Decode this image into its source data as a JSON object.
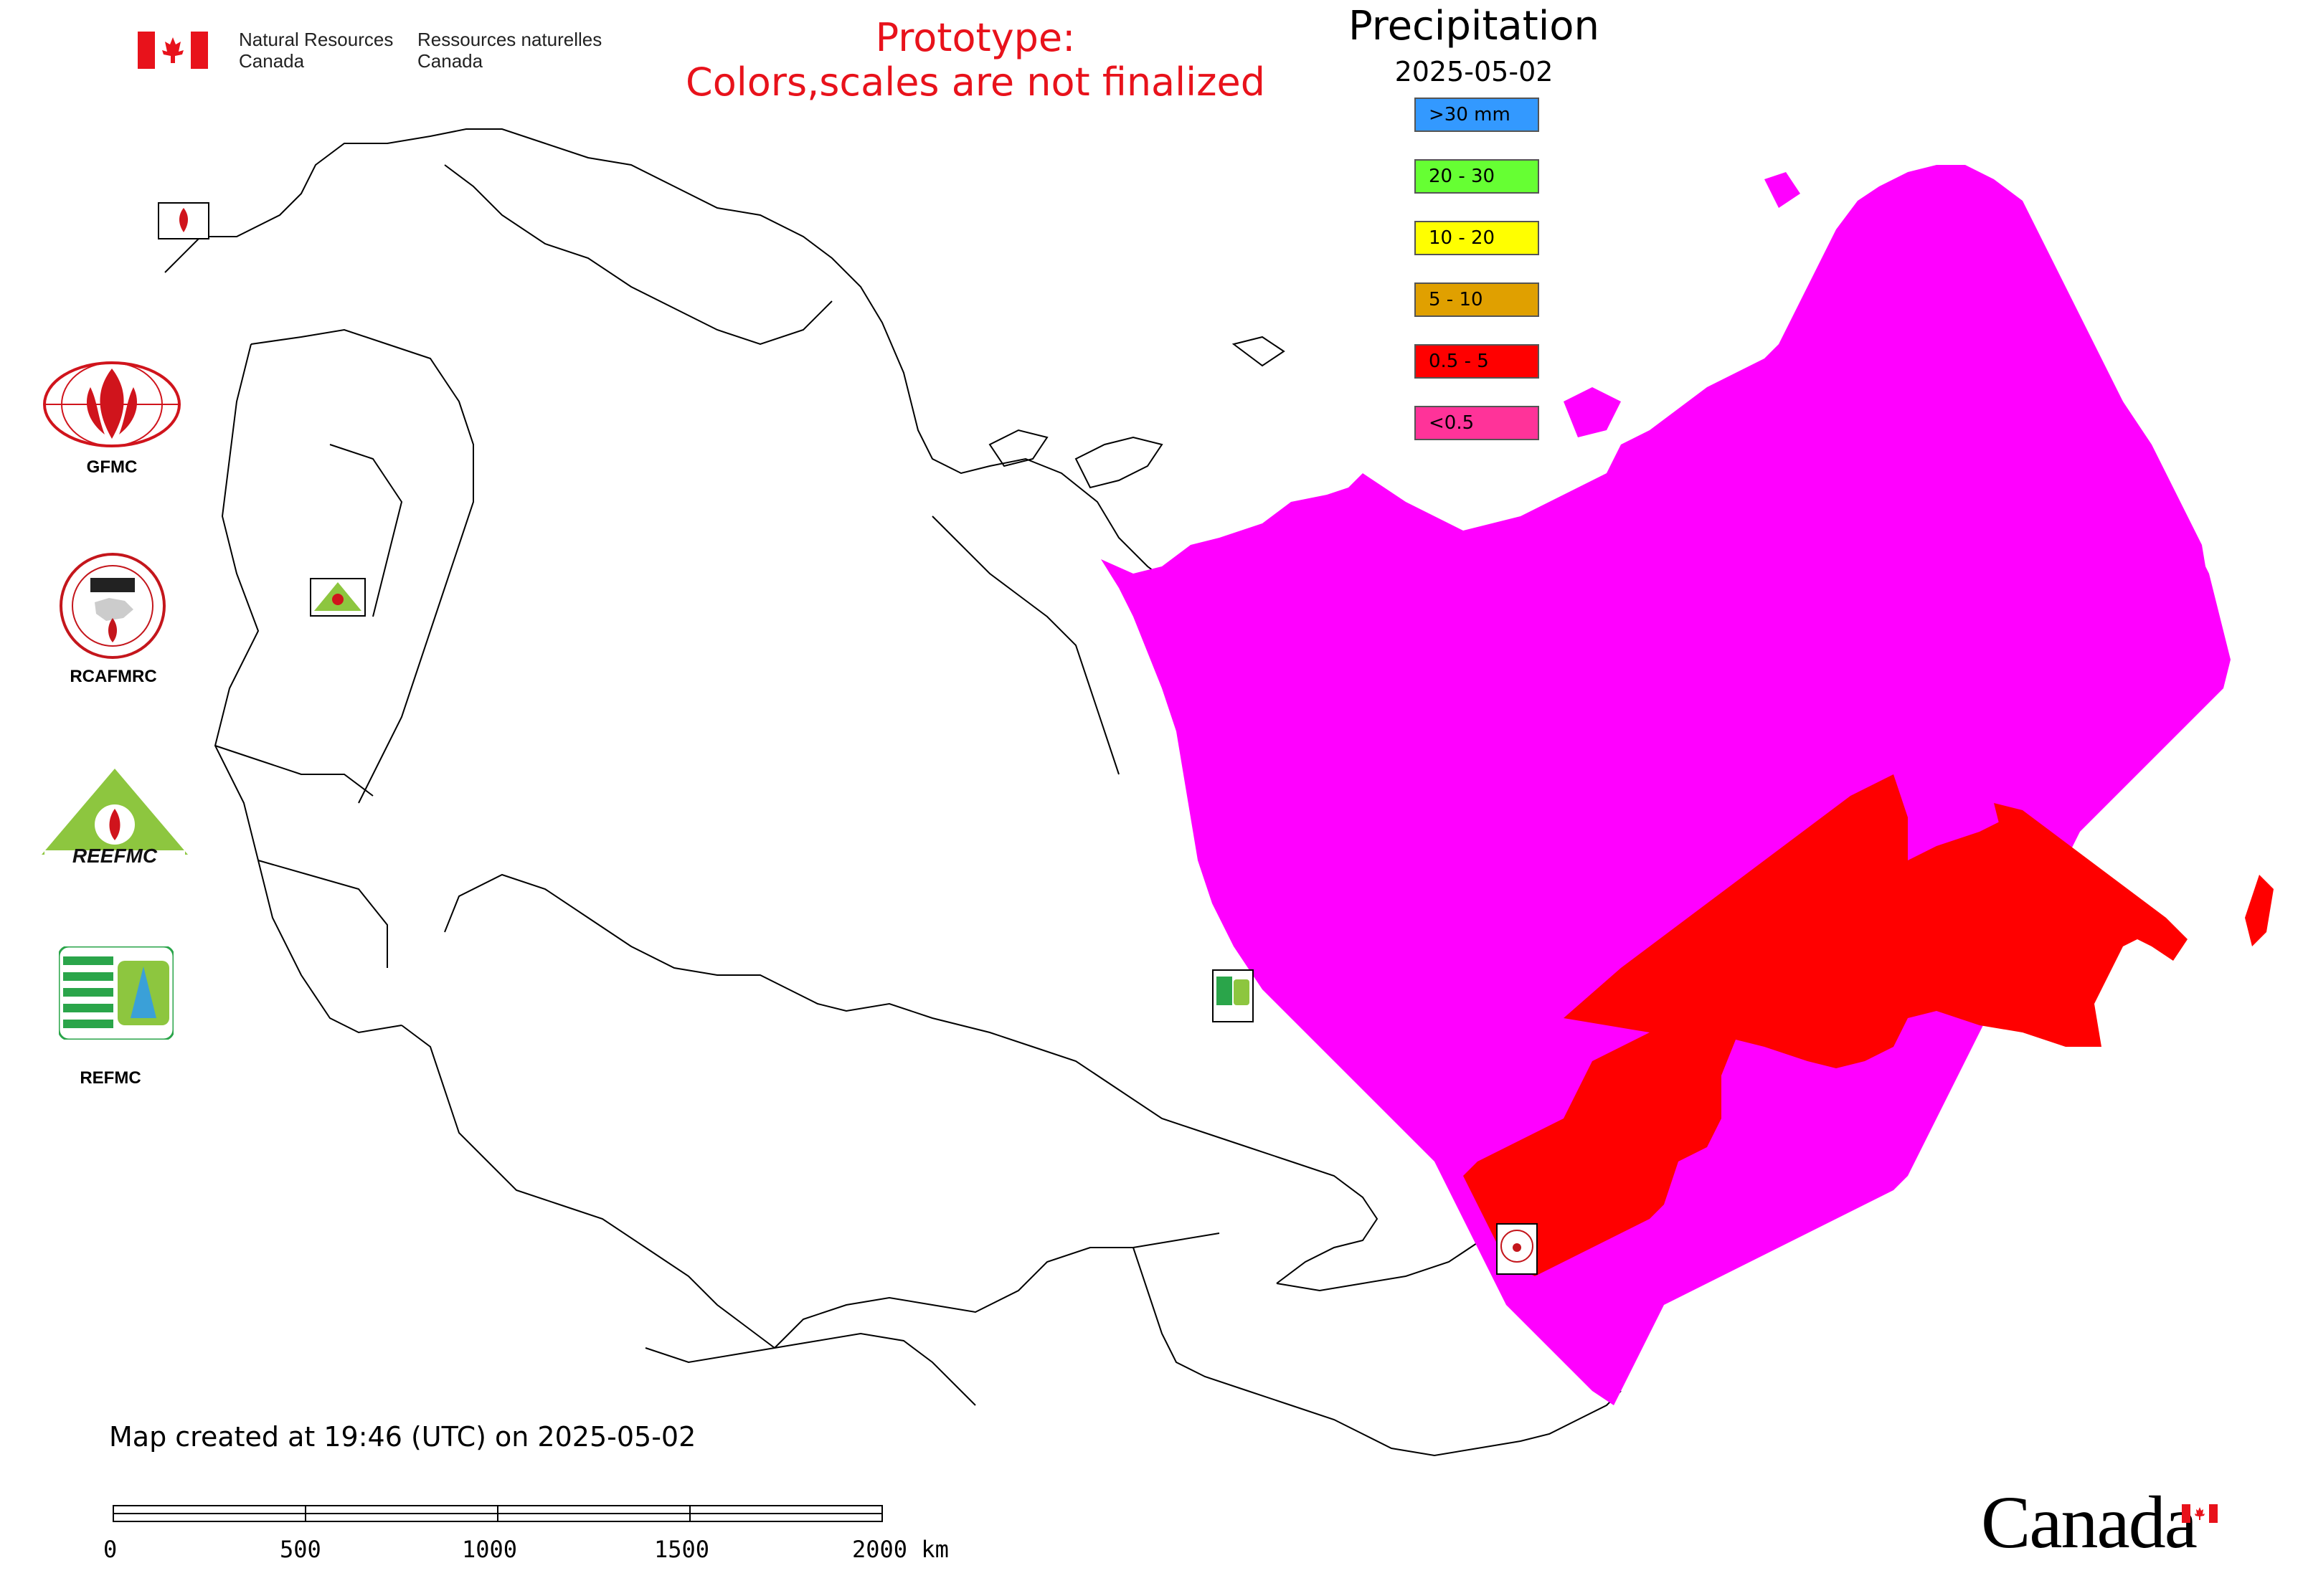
{
  "header": {
    "org_en_line1": "Natural Resources",
    "org_en_line2": "Canada",
    "org_fr_line1": "Ressources naturelles",
    "org_fr_line2": "Canada"
  },
  "notice": {
    "line1": "Prototype:",
    "line2": "Colors,scales are not finalized",
    "color": "#e8121b"
  },
  "legend": {
    "title": "Precipitation",
    "date": "2025-05-02",
    "items": [
      {
        "label": ">30 mm",
        "color": "#3399ff"
      },
      {
        "label": "20 - 30",
        "color": "#66ff33"
      },
      {
        "label": "10 - 20",
        "color": "#ffff00"
      },
      {
        "label": "5 - 10",
        "color": "#e0a000"
      },
      {
        "label": "0.5 - 5",
        "color": "#ff0000"
      },
      {
        "label": "<0.5",
        "color": "#ff3399"
      }
    ]
  },
  "map": {
    "region_fill_low": "#ff00ff",
    "region_fill_mid": "#ff0000",
    "created_text": "Map created at 19:46 (UTC) on 2025-05-02"
  },
  "logos": {
    "gfmc": "GFMC",
    "rcafmrc": "RCAFMRC",
    "reefmc_seal": "REEFMC",
    "refmc": "REFMC",
    "map_marker_gfmc": "GFMC",
    "map_marker_rcafmrc": "RCAFMRC",
    "map_marker_refmc": "REFMC"
  },
  "scale_bar": {
    "ticks": [
      "0",
      "500",
      "1000",
      "1500",
      "2000 km"
    ]
  },
  "footer": {
    "wordmark": "Canada"
  }
}
